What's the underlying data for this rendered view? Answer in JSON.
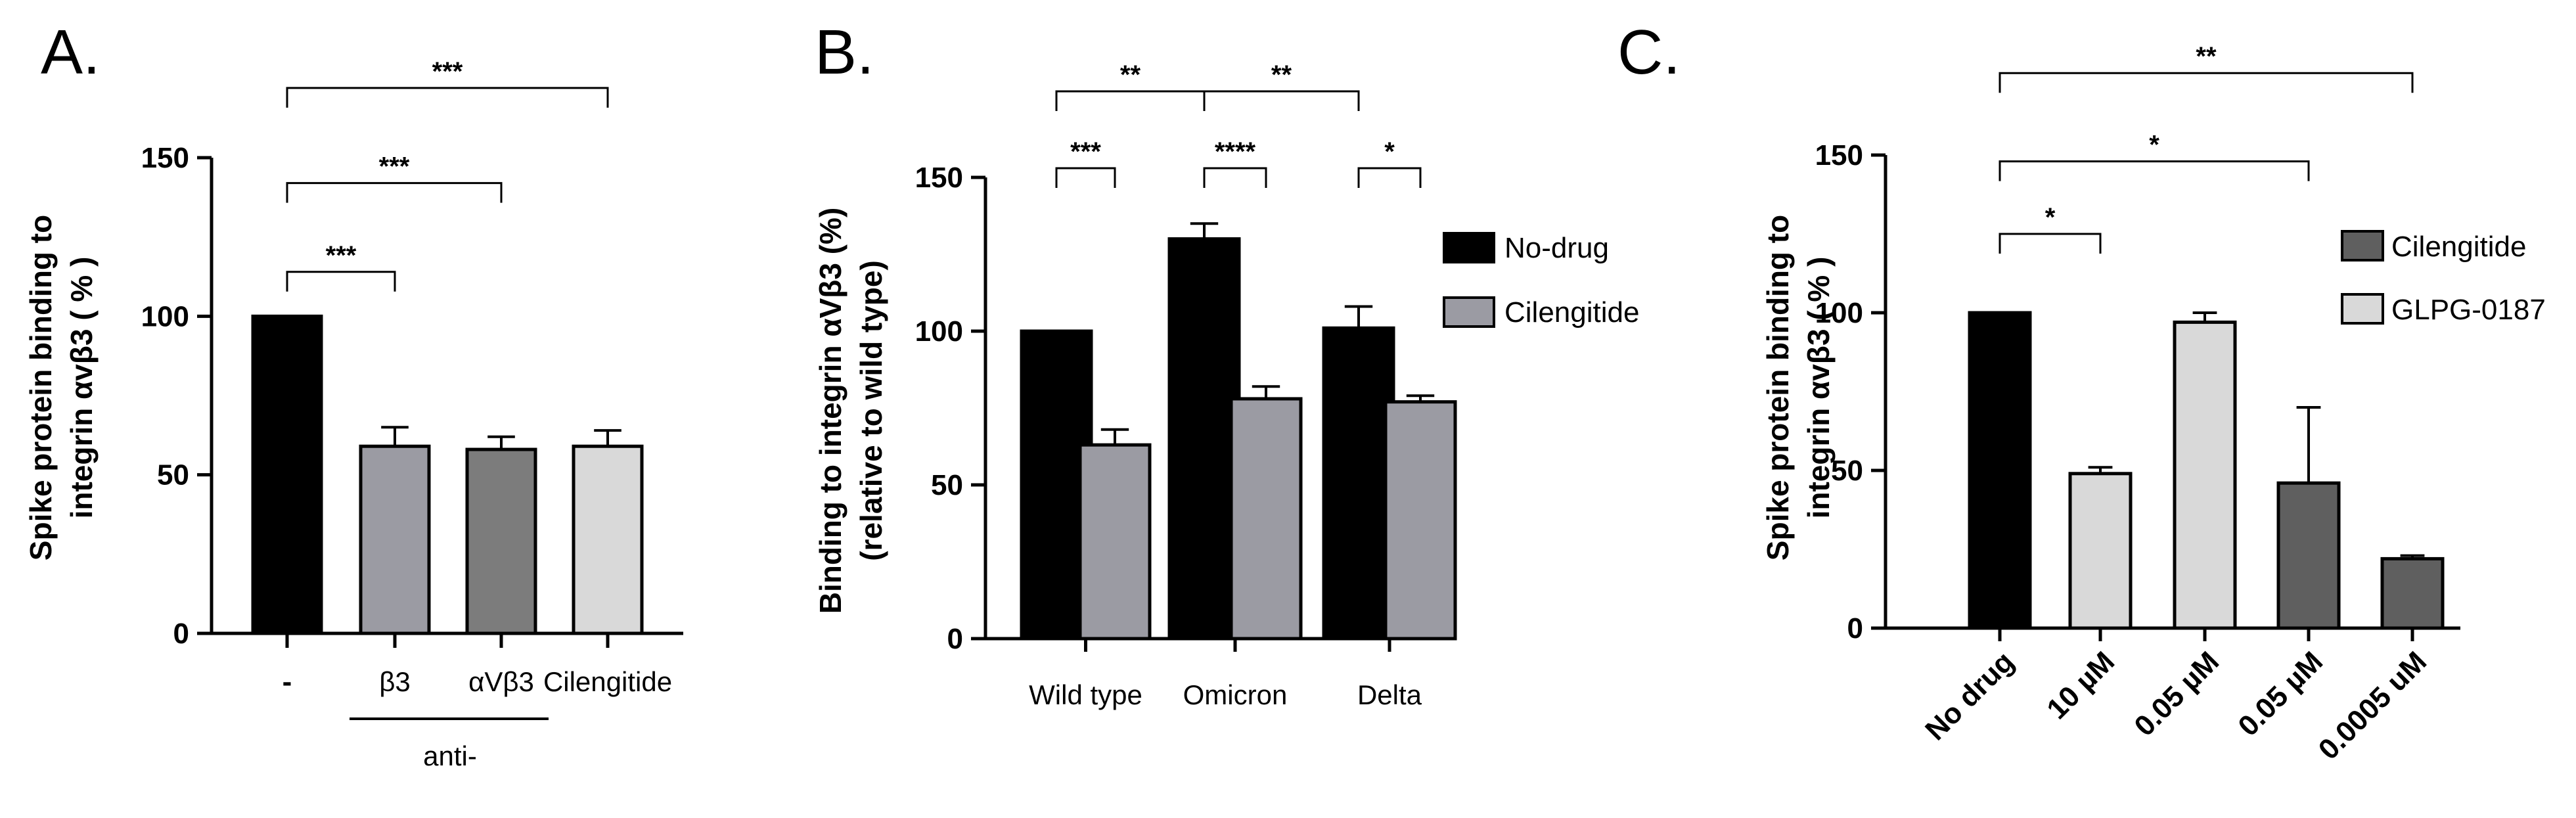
{
  "colors": {
    "black": "#000000",
    "mid_gray": "#9b9ba3",
    "dark_gray": "#7c7c7c",
    "dark_gray2": "#5f5f5f",
    "light_gray": "#d9d9d9"
  },
  "chart_data": [
    {
      "panel": "A.",
      "type": "bar",
      "ylabel_lines": [
        "Spike protein binding to",
        "integrin αvβ3 ( % )"
      ],
      "yticks": [
        0,
        50,
        100,
        150
      ],
      "ylim": [
        0,
        150
      ],
      "categories": [
        "-",
        "β3",
        "αVβ3",
        "Cilengitide"
      ],
      "values": [
        100,
        59,
        58,
        59
      ],
      "errors": [
        0,
        6,
        4,
        5
      ],
      "colors": [
        "#000000",
        "#9b9ba3",
        "#7c7c7c",
        "#d9d9d9"
      ],
      "group_label": "anti-",
      "significance": [
        {
          "from": 0,
          "to": 1,
          "label": "***",
          "level": 114
        },
        {
          "from": 0,
          "to": 2,
          "label": "***",
          "level": 142
        },
        {
          "from": 0,
          "to": 3,
          "label": "***",
          "level": 172
        }
      ]
    },
    {
      "panel": "B.",
      "type": "bar",
      "ylabel_lines": [
        "Binding to integrin αVβ3  (%)",
        "(relative to wild type)"
      ],
      "yticks": [
        0,
        50,
        100,
        150
      ],
      "ylim": [
        0,
        150
      ],
      "categories": [
        "Wild type",
        "Omicron",
        "Delta"
      ],
      "series": [
        {
          "name": "No-drug",
          "values": [
            100,
            130,
            101
          ],
          "errors": [
            0,
            5,
            7
          ],
          "color": "#000000"
        },
        {
          "name": "Cilengitide",
          "values": [
            63,
            78,
            77
          ],
          "errors": [
            5,
            4,
            2
          ],
          "color": "#9b9ba3"
        }
      ],
      "significance": [
        {
          "a": [
            0,
            0
          ],
          "b": [
            0,
            1
          ],
          "label": "***",
          "level": 153
        },
        {
          "a": [
            1,
            0
          ],
          "b": [
            1,
            1
          ],
          "label": "****",
          "level": 153
        },
        {
          "a": [
            2,
            0
          ],
          "b": [
            2,
            1
          ],
          "label": "*",
          "level": 153
        },
        {
          "a": [
            0,
            0
          ],
          "b": [
            1,
            0
          ],
          "label": "**",
          "level": 178
        },
        {
          "a": [
            1,
            0
          ],
          "b": [
            2,
            0
          ],
          "label": "**",
          "level": 178
        }
      ]
    },
    {
      "panel": "C.",
      "type": "bar",
      "ylabel_lines": [
        "Spike protein binding to",
        "integrin αvβ3 ( % )"
      ],
      "yticks": [
        0,
        50,
        100,
        150
      ],
      "ylim": [
        0,
        150
      ],
      "categories": [
        "No drug",
        "10 µM",
        "0.05 µM",
        "0.05 µM",
        "0.0005 uM"
      ],
      "values": [
        100,
        49,
        97,
        46,
        22
      ],
      "errors": [
        0,
        2,
        3,
        24,
        1
      ],
      "colors": [
        "#000000",
        "#d9d9d9",
        "#d9d9d9",
        "#5f5f5f",
        "#5f5f5f"
      ],
      "legend": [
        {
          "name": "Cilengitide",
          "color": "#5f5f5f"
        },
        {
          "name": "GLPG-0187",
          "color": "#d9d9d9"
        }
      ],
      "significance": [
        {
          "from": 0,
          "to": 1,
          "label": "*",
          "level": 125
        },
        {
          "from": 0,
          "to": 3,
          "label": "*",
          "level": 148
        },
        {
          "from": 0,
          "to": 4,
          "label": "**",
          "level": 176
        }
      ]
    }
  ]
}
